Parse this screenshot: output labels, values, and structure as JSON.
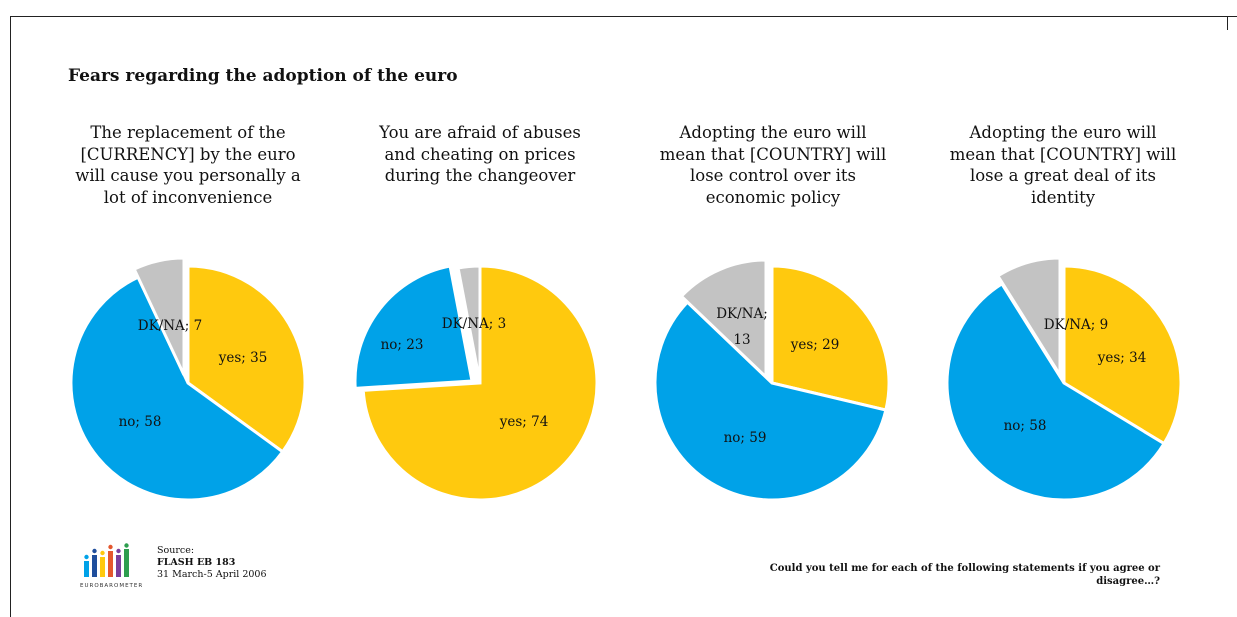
{
  "title": "Fears regarding the adoption of the euro",
  "colors": {
    "yes": "#FFC90E",
    "no": "#00A2E8",
    "dkna": "#C3C3C3",
    "edge": "#ffffff"
  },
  "chart_data": [
    {
      "type": "pie",
      "title": "The replacement of the [CURRENCY] by the euro will cause you personally a lot of inconvenience",
      "slices": [
        {
          "name": "yes",
          "value": 35,
          "label": "yes; 35"
        },
        {
          "name": "no",
          "value": 58,
          "label": "no; 58"
        },
        {
          "name": "DK/NA",
          "value": 7,
          "label": "DK/NA; 7"
        }
      ]
    },
    {
      "type": "pie",
      "title": "You are afraid of abuses and cheating on prices during the changeover",
      "slices": [
        {
          "name": "yes",
          "value": 74,
          "label": "yes; 74"
        },
        {
          "name": "no",
          "value": 23,
          "label": "no; 23"
        },
        {
          "name": "DK/NA",
          "value": 3,
          "label": "DK/NA; 3"
        }
      ]
    },
    {
      "type": "pie",
      "title": "Adopting the euro will mean that [COUNTRY] will lose control over its economic policy",
      "slices": [
        {
          "name": "yes",
          "value": 29,
          "label": "yes; 29"
        },
        {
          "name": "no",
          "value": 59,
          "label": "no; 59"
        },
        {
          "name": "DK/NA",
          "value": 13,
          "label": "DK/NA; 13"
        }
      ]
    },
    {
      "type": "pie",
      "title": "Adopting the euro will mean that [COUNTRY] will lose a great deal of its identity",
      "slices": [
        {
          "name": "yes",
          "value": 34,
          "label": "yes; 34"
        },
        {
          "name": "no",
          "value": 58,
          "label": "no; 58"
        },
        {
          "name": "DK/NA",
          "value": 9,
          "label": "DK/NA; 9"
        }
      ]
    }
  ],
  "source": {
    "label": "Source:",
    "survey": "FLASH EB 183",
    "dates": "31 March-5 April 2006"
  },
  "logo": {
    "word": "EUROBAROMETER",
    "icon": "eurobarometer-logo"
  },
  "question": "Could you tell me for each of the following statements if you agree or disagree…?"
}
